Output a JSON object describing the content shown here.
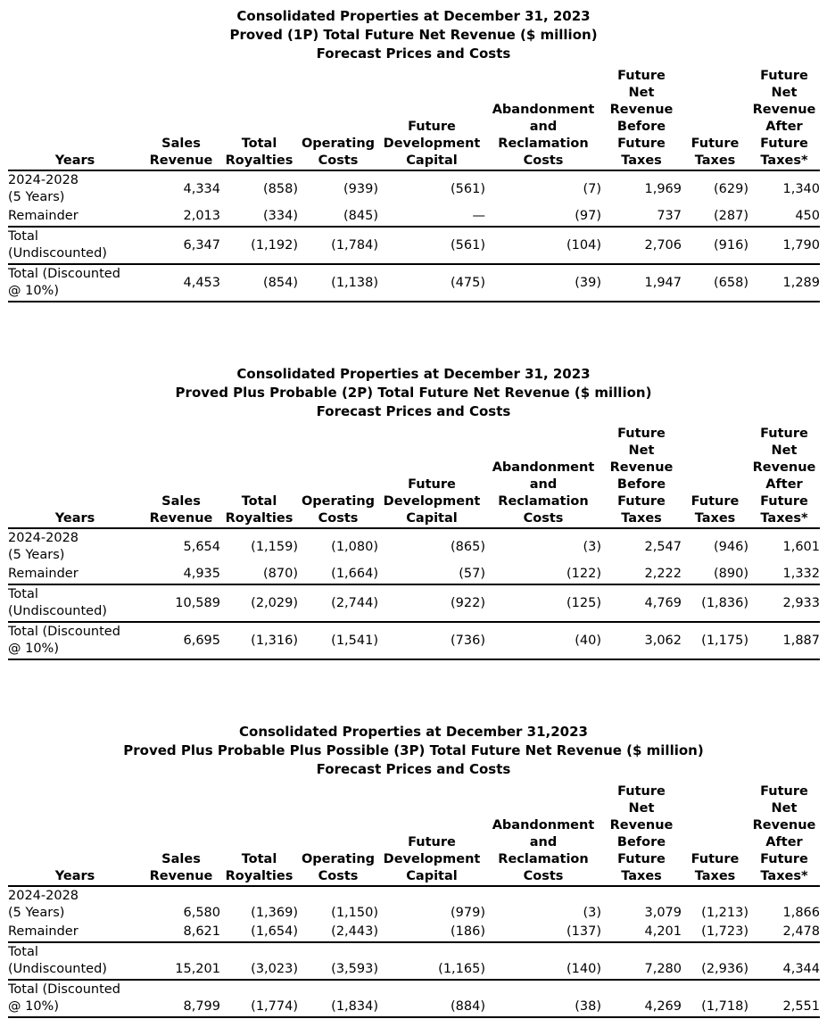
{
  "report": {
    "columns": [
      {
        "lines": [
          "Years"
        ]
      },
      {
        "lines": [
          "Sales",
          "Revenue"
        ]
      },
      {
        "lines": [
          "Total",
          "Royalties"
        ]
      },
      {
        "lines": [
          "Operating",
          "Costs"
        ]
      },
      {
        "lines": [
          "Future",
          "Development",
          "Capital"
        ]
      },
      {
        "lines": [
          "Abandonment",
          "and",
          "Reclamation",
          "Costs"
        ]
      },
      {
        "lines": [
          "Future",
          "Net",
          "Revenue",
          "Before",
          "Future",
          "Taxes"
        ]
      },
      {
        "lines": [
          "Future",
          "Taxes"
        ]
      },
      {
        "lines": [
          "Future",
          "Net",
          "Revenue",
          "After",
          "Future",
          "Taxes*"
        ]
      }
    ],
    "tables": [
      {
        "title_lines": [
          "Consolidated Properties at December 31, 2023",
          "Proved (1P) Total Future Net Revenue ($ million)",
          "Forecast Prices and Costs"
        ],
        "rows": [
          {
            "label_lines": [
              "2024-2028",
              "(5 Years)"
            ],
            "values": [
              "4,334",
              "(858)",
              "(939)",
              "(561)",
              "(7)",
              "1,969",
              "(629)",
              "1,340"
            ]
          },
          {
            "label_lines": [
              "Remainder"
            ],
            "values": [
              "2,013",
              "(334)",
              "(845)",
              "—",
              "(97)",
              "737",
              "(287)",
              "450"
            ]
          },
          {
            "label_lines": [
              "Total",
              "(Undiscounted)"
            ],
            "values": [
              "6,347",
              "(1,192)",
              "(1,784)",
              "(561)",
              "(104)",
              "2,706",
              "(916)",
              "1,790"
            ]
          },
          {
            "label_lines": [
              "Total (Discounted",
              "@ 10%)"
            ],
            "values": [
              "4,453",
              "(854)",
              "(1,138)",
              "(475)",
              "(39)",
              "1,947",
              "(658)",
              "1,289"
            ]
          }
        ]
      },
      {
        "title_lines": [
          "Consolidated Properties at December 31, 2023",
          "Proved Plus Probable (2P) Total Future Net Revenue ($ million)",
          "Forecast Prices and Costs"
        ],
        "rows": [
          {
            "label_lines": [
              "2024-2028",
              "(5 Years)"
            ],
            "values": [
              "5,654",
              "(1,159)",
              "(1,080)",
              "(865)",
              "(3)",
              "2,547",
              "(946)",
              "1,601"
            ]
          },
          {
            "label_lines": [
              "Remainder"
            ],
            "values": [
              "4,935",
              "(870)",
              "(1,664)",
              "(57)",
              "(122)",
              "2,222",
              "(890)",
              "1,332"
            ]
          },
          {
            "label_lines": [
              "Total",
              "(Undiscounted)"
            ],
            "values": [
              "10,589",
              "(2,029)",
              "(2,744)",
              "(922)",
              "(125)",
              "4,769",
              "(1,836)",
              "2,933"
            ]
          },
          {
            "label_lines": [
              "Total (Discounted",
              "@ 10%)"
            ],
            "values": [
              "6,695",
              "(1,316)",
              "(1,541)",
              "(736)",
              "(40)",
              "3,062",
              "(1,175)",
              "1,887"
            ]
          }
        ]
      },
      {
        "title_lines": [
          "Consolidated Properties at December 31,2023",
          "Proved Plus Probable Plus Possible (3P) Total Future Net Revenue ($ million)",
          "Forecast Prices and Costs"
        ],
        "rows": [
          {
            "label_lines": [
              "2024-2028",
              "(5 Years)"
            ],
            "values": [
              "6,580",
              "(1,369)",
              "(1,150)",
              "(979)",
              "(3)",
              "3,079",
              "(1,213)",
              "1,866"
            ]
          },
          {
            "label_lines": [
              "Remainder"
            ],
            "values": [
              "8,621",
              "(1,654)",
              "(2,443)",
              "(186)",
              "(137)",
              "4,201",
              "(1,723)",
              "2,478"
            ]
          },
          {
            "label_lines": [
              "Total",
              "(Undiscounted)"
            ],
            "values": [
              "15,201",
              "(3,023)",
              "(3,593)",
              "(1,165)",
              "(140)",
              "7,280",
              "(2,936)",
              "4,344"
            ]
          },
          {
            "label_lines": [
              "Total (Discounted",
              "@ 10%)"
            ],
            "values": [
              "8,799",
              "(1,774)",
              "(1,834)",
              "(884)",
              "(38)",
              "4,269",
              "(1,718)",
              "2,551"
            ]
          }
        ]
      }
    ]
  }
}
